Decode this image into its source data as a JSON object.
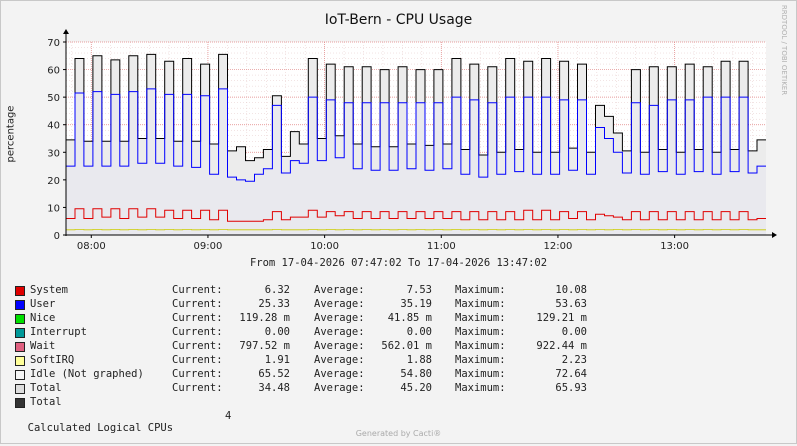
{
  "title": "IoT-Bern - CPU Usage",
  "vertical_label": "percentage",
  "watermark": "RRDTOOL / TOBI OETIKER",
  "date_range": "From 17-04-2026 07:47:02 To 17-04-2026 13:47:02",
  "generated_by": "Generated by Cacti®",
  "calculated_cpus": {
    "label": "Calculated Logical CPUs",
    "value": "4"
  },
  "legend": [
    {
      "name": "System",
      "color": "#e00000",
      "current": "6.32",
      "average": "7.53",
      "maximum": "10.08"
    },
    {
      "name": "User",
      "color": "#0000ff",
      "current": "25.33",
      "average": "35.19",
      "maximum": "53.63"
    },
    {
      "name": "Nice",
      "color": "#00e000",
      "current": "119.28 m",
      "average": "41.85 m",
      "maximum": "129.21 m"
    },
    {
      "name": "Interrupt",
      "color": "#009999",
      "current": "0.00",
      "average": "0.00",
      "maximum": "0.00"
    },
    {
      "name": "Wait",
      "color": "#e06080",
      "current": "797.52 m",
      "average": "562.01 m",
      "maximum": "922.44 m"
    },
    {
      "name": "SoftIRQ",
      "color": "#ffff99",
      "current": "1.91",
      "average": "1.88",
      "maximum": "2.23"
    },
    {
      "name": "Idle (Not graphed)",
      "color": "#f5f5f5",
      "current": "65.52",
      "average": "54.80",
      "maximum": "72.64"
    },
    {
      "name": "Total",
      "color": "#dddddd",
      "current": "34.48",
      "average": "45.20",
      "maximum": "65.93"
    },
    {
      "name": "Total",
      "color": "#333333"
    }
  ],
  "legend_labels": {
    "current": "Current:",
    "average": "Average:",
    "maximum": "Maximum:"
  },
  "chart_data": {
    "type": "line",
    "title": "IoT-Bern - CPU Usage",
    "ylabel": "percentage",
    "ylim": [
      0,
      70
    ],
    "yticks": [
      0,
      10,
      20,
      30,
      40,
      50,
      60,
      70
    ],
    "xlim_hours": [
      7.7833,
      13.7833
    ],
    "xticks": [
      {
        "h": 8,
        "label": "08:00"
      },
      {
        "h": 9,
        "label": "09:00"
      },
      {
        "h": 10,
        "label": "10:00"
      },
      {
        "h": 11,
        "label": "11:00"
      },
      {
        "h": 12,
        "label": "12:00"
      },
      {
        "h": 13,
        "label": "13:00"
      }
    ],
    "series": [
      {
        "name": "Total",
        "color": "#000000",
        "values": [
          34.5,
          64,
          34,
          65,
          34,
          63.5,
          34,
          65,
          35,
          65.5,
          35,
          63,
          34,
          64,
          34,
          62,
          33,
          65.5,
          30.5,
          32,
          27,
          28,
          31,
          50.5,
          28.5,
          37.5,
          33,
          64,
          35,
          62,
          36,
          61,
          33,
          61,
          32,
          60,
          32,
          61,
          33,
          60,
          32.5,
          60,
          33,
          64,
          31,
          62,
          29,
          61,
          30,
          64,
          31,
          63,
          30,
          64,
          30,
          63,
          31.5,
          62,
          30,
          47,
          43,
          37,
          30.5,
          60,
          30,
          61,
          31,
          61,
          30,
          62,
          31,
          61,
          30,
          63,
          31,
          63,
          30.5,
          34.5
        ]
      },
      {
        "name": "User",
        "color": "#0000ff",
        "values": [
          25,
          51.5,
          25,
          52,
          25,
          51,
          25,
          52,
          26,
          53,
          26,
          51,
          25,
          51,
          24.5,
          50.5,
          22,
          53,
          21,
          20,
          19.5,
          22,
          24,
          47,
          22.5,
          27,
          26,
          50,
          27,
          49,
          28,
          48,
          24,
          48,
          23.5,
          48,
          23.5,
          48,
          24,
          48,
          23.5,
          48,
          24,
          50,
          22,
          49,
          21,
          48,
          22,
          50,
          23,
          50,
          22,
          50,
          22,
          49,
          23.5,
          49,
          22,
          39,
          35,
          30,
          22.5,
          48,
          22,
          47,
          23,
          49,
          22,
          49,
          23,
          50,
          22,
          50,
          23,
          50,
          22.5,
          25
        ]
      },
      {
        "name": "System",
        "color": "#e00000",
        "values": [
          6,
          9.5,
          6,
          9.5,
          6.5,
          9.5,
          6,
          9.5,
          6.5,
          9.5,
          6.5,
          9,
          6,
          9,
          6,
          9,
          5.5,
          9,
          5,
          5,
          5,
          5,
          5.5,
          8.5,
          5.5,
          6.5,
          6.5,
          9,
          6.5,
          8.5,
          7,
          8.5,
          6,
          8.5,
          6,
          8.5,
          6,
          8.5,
          6,
          8.5,
          6,
          8.5,
          6,
          8.5,
          5.5,
          8.5,
          5.5,
          8.5,
          5.5,
          8.5,
          5.5,
          9,
          5.5,
          9,
          5.5,
          8.5,
          6,
          8.5,
          5.5,
          7.5,
          7,
          6.5,
          5.5,
          8.5,
          5.5,
          8.5,
          5.5,
          8.5,
          5.5,
          8.5,
          5.5,
          8.5,
          5.5,
          8.5,
          5.5,
          8.5,
          5.5,
          6
        ]
      },
      {
        "name": "SoftIRQ",
        "color": "#cccc00",
        "values": [
          1.9,
          2,
          1.9,
          2,
          1.9,
          2,
          1.9,
          2,
          1.9,
          2,
          1.9,
          2,
          1.9,
          2,
          1.9,
          2,
          1.9,
          2,
          1.9,
          1.9,
          1.9,
          1.9,
          1.9,
          2,
          1.9,
          1.9,
          1.9,
          2,
          1.9,
          2,
          1.9,
          2,
          1.9,
          2,
          1.9,
          2,
          1.9,
          2,
          1.9,
          2,
          1.9,
          2,
          1.9,
          2,
          1.9,
          2,
          1.9,
          2,
          1.9,
          2,
          1.9,
          2,
          1.9,
          2,
          1.9,
          2,
          1.9,
          2,
          1.9,
          2,
          1.9,
          2,
          1.9,
          2,
          1.9,
          2,
          1.9,
          2,
          1.9,
          2,
          1.9,
          2,
          1.9,
          2,
          1.9,
          2,
          1.9,
          1.9
        ]
      }
    ]
  }
}
